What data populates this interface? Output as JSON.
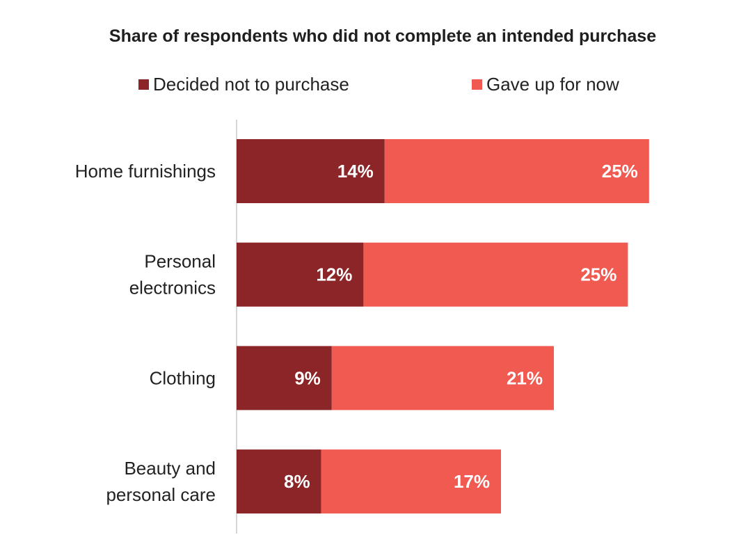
{
  "chart_data": {
    "type": "bar",
    "orientation": "horizontal",
    "stacked": true,
    "title": "Share of respondents who did not complete an intended purchase",
    "categories": [
      [
        "Home furnishings"
      ],
      [
        "Personal",
        "electronics"
      ],
      [
        "Clothing"
      ],
      [
        "Beauty and",
        "personal care"
      ]
    ],
    "series": [
      {
        "name": "Decided not to purchase",
        "color": "#8b2527",
        "values": [
          14,
          12,
          9,
          8
        ],
        "labels": [
          "14%",
          "12%",
          "9%",
          "8%"
        ]
      },
      {
        "name": "Gave up for now",
        "color": "#f05a50",
        "values": [
          25,
          25,
          21,
          17
        ],
        "labels": [
          "25%",
          "25%",
          "21%",
          "17%"
        ]
      }
    ],
    "xlim": [
      0,
      39
    ],
    "grid": false,
    "legend_position": "top",
    "x_axis_visible": false
  }
}
